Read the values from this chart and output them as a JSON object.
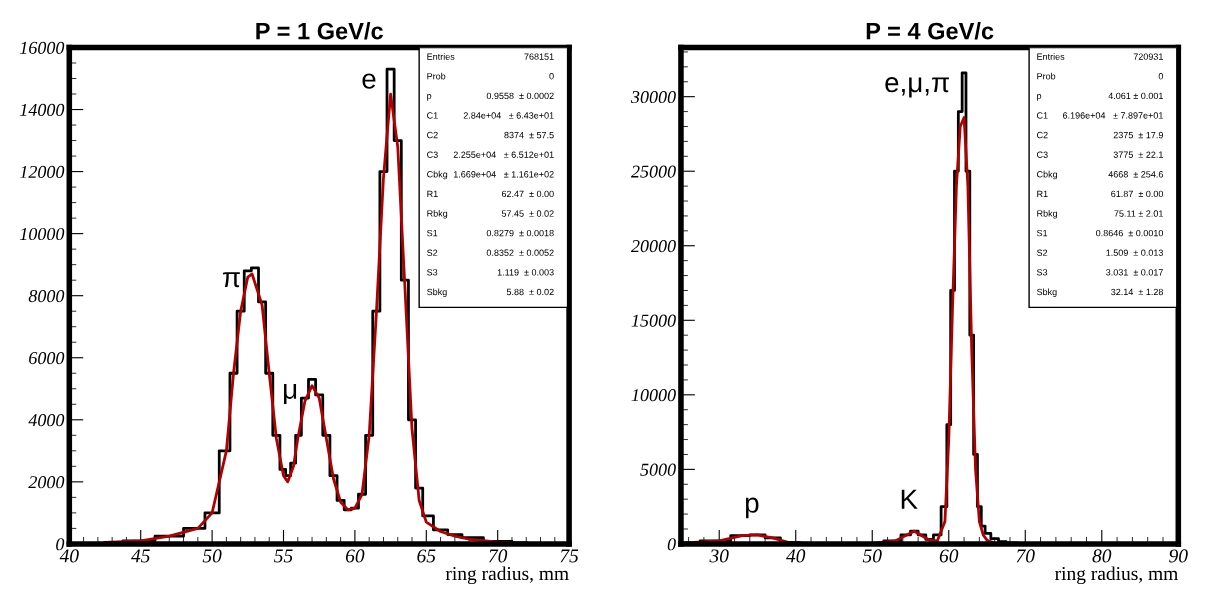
{
  "chart_data": [
    {
      "type": "step",
      "title": "P = 1 GeV/c",
      "xlabel": "ring radius, mm",
      "xlim": [
        40,
        75
      ],
      "xticks": [
        40,
        45,
        50,
        55,
        60,
        65,
        70,
        75
      ],
      "ylim": [
        0,
        16000
      ],
      "yticks": [
        0,
        2000,
        4000,
        6000,
        8000,
        10000,
        12000,
        14000,
        16000
      ],
      "grid": false,
      "legend": false,
      "series": [
        {
          "color": "#000000",
          "x": [
            42.5,
            45,
            47,
            49,
            50,
            51,
            51.5,
            52,
            52.5,
            53,
            53.5,
            54,
            54.5,
            55,
            55.3,
            55.7,
            56,
            56.5,
            57,
            57.5,
            58,
            58.5,
            59,
            59.5,
            60,
            60.5,
            61,
            61.5,
            62,
            62.5,
            63,
            63.5,
            64,
            64.5,
            65,
            66,
            67,
            68,
            70,
            72
          ],
          "values": [
            50,
            100,
            250,
            500,
            1000,
            3000,
            5500,
            7500,
            8800,
            8900,
            7800,
            5500,
            3500,
            2400,
            2200,
            2600,
            3500,
            4700,
            5300,
            4800,
            3500,
            2200,
            1400,
            1100,
            1150,
            1600,
            3500,
            7500,
            12000,
            15300,
            13000,
            8500,
            4000,
            1800,
            900,
            450,
            300,
            200,
            80,
            30
          ]
        },
        {
          "type": "line",
          "color": "#b00000",
          "x": [
            42.5,
            45,
            47,
            49,
            50,
            51,
            51.5,
            52,
            52.5,
            52.8,
            53.5,
            54,
            54.5,
            55,
            55.3,
            55.7,
            56,
            56.5,
            57,
            57.5,
            58,
            58.5,
            59,
            59.5,
            60,
            60.5,
            61,
            61.5,
            62,
            62.5,
            63,
            63.5,
            64,
            64.5,
            65,
            66,
            67,
            68,
            70,
            72
          ],
          "values": [
            50,
            100,
            250,
            500,
            1000,
            3000,
            5500,
            7500,
            8600,
            8700,
            7700,
            5500,
            3400,
            2200,
            2000,
            2500,
            3400,
            4600,
            5100,
            4700,
            3400,
            2100,
            1350,
            1100,
            1150,
            1600,
            3500,
            7400,
            11800,
            14500,
            12800,
            8300,
            3700,
            1400,
            700,
            400,
            250,
            150,
            60,
            20
          ]
        }
      ],
      "annotations": [
        {
          "text": "π",
          "x": 53,
          "y": 8900
        },
        {
          "text": "μ",
          "x": 57,
          "y": 5300
        },
        {
          "text": "e",
          "x": 62.5,
          "y": 15300
        },
        "Entries",
        "768151",
        "Prob",
        "0",
        "p",
        "0.9558  ± 0.0002",
        "C1",
        "2.84e+04   ± 6.43e+01",
        "C2",
        "8374  ± 57.5",
        "C3",
        "2.255e+04   ± 6.512e+01",
        "Cbkg",
        "1.669e+04   ± 1.161e+02",
        "R1",
        "62.47  ± 0.00",
        "Rbkg",
        "57.45  ± 0.02",
        "S1",
        "0.8279  ± 0.0018",
        "S2",
        "0.8352  ± 0.0052",
        "S3",
        "1.119  ± 0.003",
        "Sbkg",
        "5.88  ± 0.02"
      ]
    },
    {
      "type": "step",
      "title": "P = 4 GeV/c",
      "xlabel": "ring radius, mm",
      "xlim": [
        25,
        90
      ],
      "xticks": [
        30,
        40,
        50,
        60,
        70,
        80,
        90
      ],
      "ylim": [
        0,
        33300
      ],
      "yticks": [
        0,
        5000,
        10000,
        15000,
        20000,
        25000,
        30000
      ],
      "grid": false,
      "legend": false,
      "series": [
        {
          "color": "#000000",
          "x": [
            25,
            30,
            33,
            35,
            37,
            39,
            42,
            50,
            53,
            54.5,
            55.5,
            56.5,
            57.5,
            58.5,
            59.5,
            60,
            60.5,
            61,
            61.5,
            62,
            62.5,
            63,
            63.5,
            64,
            64.5,
            65,
            66,
            67,
            68,
            70
          ],
          "values": [
            50,
            200,
            550,
            600,
            400,
            100,
            30,
            30,
            200,
            600,
            850,
            600,
            300,
            600,
            2500,
            8000,
            17000,
            25000,
            29000,
            31600,
            25000,
            14000,
            6000,
            2500,
            1200,
            700,
            350,
            150,
            60,
            20
          ]
        },
        {
          "type": "line",
          "color": "#b00000",
          "x": [
            25,
            30,
            33,
            35,
            37,
            39,
            42,
            50,
            53,
            54.5,
            55.5,
            56.5,
            57.5,
            58.5,
            59.5,
            60,
            60.5,
            61,
            61.5,
            62,
            62.5,
            63,
            63.5,
            64,
            64.5,
            65,
            66
          ],
          "values": [
            50,
            200,
            550,
            600,
            400,
            100,
            30,
            30,
            200,
            600,
            850,
            550,
            250,
            200,
            1500,
            7000,
            16000,
            24000,
            28000,
            28600,
            24000,
            13000,
            5000,
            1500,
            600,
            250,
            60
          ]
        }
      ],
      "annotations": [
        {
          "text": "p",
          "x": 35,
          "y": 600
        },
        {
          "text": "K",
          "x": 55.5,
          "y": 850
        },
        {
          "text": "e,μ,π",
          "x": 62,
          "y": 31600
        },
        "Entries",
        "720931",
        "Prob",
        "0",
        "p",
        "4.061 ± 0.001",
        "C1",
        "6.196e+04   ± 7.897e+01",
        "C2",
        "2375  ± 17.9",
        "C3",
        "3775  ± 22.1",
        "Cbkg",
        "4668  ± 254.6",
        "R1",
        "61.87  ± 0.00",
        "Rbkg",
        "75.11 ± 2.01",
        "S1",
        "0.8646  ± 0.0010",
        "S2",
        "1.509  ± 0.013",
        "S3",
        "3.031  ± 0.017",
        "Sbkg",
        "32.14  ± 1.28"
      ]
    }
  ]
}
